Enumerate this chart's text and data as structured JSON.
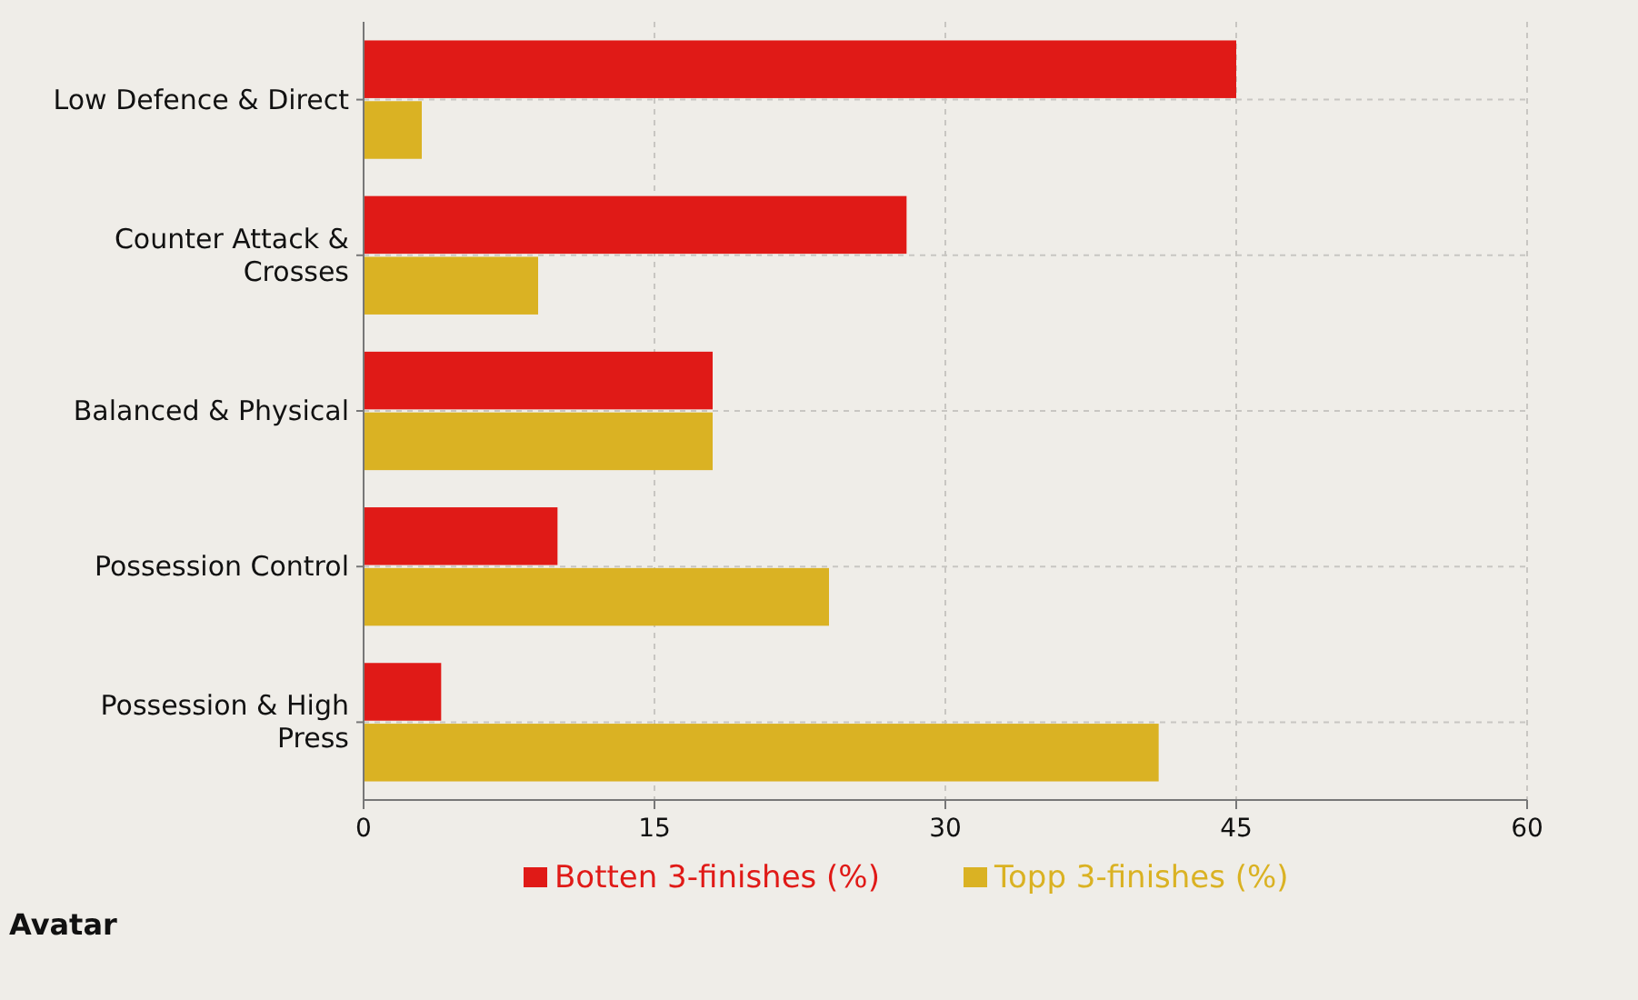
{
  "chart_data": {
    "type": "bar",
    "orientation": "horizontal",
    "categories": [
      "Low Defence & Direct",
      "Counter Attack & Crosses",
      "Balanced & Physical",
      "Possession Control",
      "Possession & High Press"
    ],
    "series": [
      {
        "name": "Botten 3-finishes (%)",
        "color": "#e01a17",
        "values": [
          45,
          28,
          18,
          10,
          4
        ]
      },
      {
        "name": "Topp 3-finishes (%)",
        "color": "#dab223",
        "values": [
          3,
          9,
          18,
          24,
          41
        ]
      }
    ],
    "xlim": [
      0,
      60
    ],
    "xticks": [
      0,
      15,
      30,
      45,
      60
    ],
    "grid": true,
    "legend": "bottom",
    "annotations": [
      "Avatar"
    ]
  }
}
